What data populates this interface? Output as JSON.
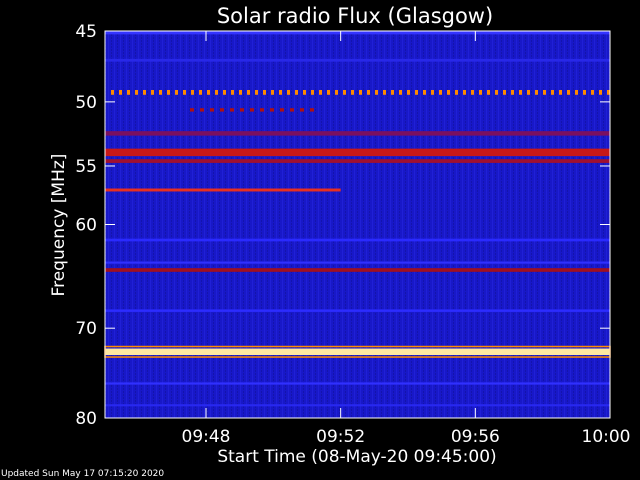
{
  "chart_data": {
    "type": "heatmap",
    "title": "Solar radio Flux (Glasgow)",
    "xlabel": "Start Time (08-May-20 09:45:00)",
    "ylabel_prefix": "Frequency ",
    "ylabel_unit": "MHz",
    "x_unit": "minutes",
    "xlim": [
      "09:45",
      "10:00"
    ],
    "ylim": [
      45,
      80
    ],
    "y_ticks": [
      {
        "value": 45,
        "label": "45"
      },
      {
        "value": 50,
        "label": "50"
      },
      {
        "value": 55,
        "label": "55"
      },
      {
        "value": 60,
        "label": "60"
      },
      {
        "value": 70,
        "label": "70"
      },
      {
        "value": 80,
        "label": "80"
      }
    ],
    "x_ticks": [
      {
        "value": "09:48",
        "label": "09:48"
      },
      {
        "value": "09:52",
        "label": "09:52"
      },
      {
        "value": "09:56",
        "label": "09:56"
      },
      {
        "value": "10:00",
        "label": "10:00"
      }
    ],
    "background_color": "#1818c8",
    "bands": [
      {
        "freq": 45.1,
        "width": 0.25,
        "color": "#3434ff"
      },
      {
        "freq": 47.0,
        "width": 0.2,
        "color": "#2828e8"
      },
      {
        "freq": 49.3,
        "width": 0.35,
        "color": "#ff8a00",
        "dashed": true
      },
      {
        "freq": 50.6,
        "width": 0.25,
        "color": "#b01010",
        "dotted": true
      },
      {
        "freq": 52.4,
        "width": 0.35,
        "color": "#7a1060"
      },
      {
        "freq": 53.9,
        "width": 0.6,
        "color": "#c81818"
      },
      {
        "freq": 54.6,
        "width": 0.3,
        "color": "#a01030"
      },
      {
        "freq": 57.0,
        "width": 0.25,
        "color": "#e83020",
        "x_end": "09:52"
      },
      {
        "freq": 61.4,
        "width": 0.25,
        "color": "#2a2aff"
      },
      {
        "freq": 63.5,
        "width": 0.2,
        "color": "#3030ff"
      },
      {
        "freq": 64.2,
        "width": 0.35,
        "color": "#a01020"
      },
      {
        "freq": 68.2,
        "width": 0.25,
        "color": "#2c2cff"
      },
      {
        "freq": 72.5,
        "width": 0.7,
        "color": "#ffe8a0",
        "peak": true
      },
      {
        "freq": 76.0,
        "width": 0.25,
        "color": "#3030ff"
      },
      {
        "freq": 78.5,
        "width": 0.25,
        "color": "#2828f0"
      }
    ]
  },
  "footer": {
    "updated": "Updated Sun May 17 07:15:20 2020"
  }
}
